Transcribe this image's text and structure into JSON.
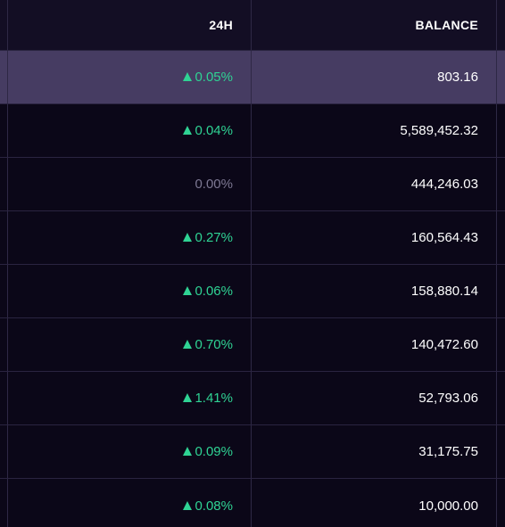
{
  "header": {
    "change_label": "24H",
    "balance_label": "BALANCE"
  },
  "rows": [
    {
      "change": "0.05%",
      "direction": "up",
      "balance": "803.16",
      "highlighted": true
    },
    {
      "change": "0.04%",
      "direction": "up",
      "balance": "5,589,452.32",
      "highlighted": false
    },
    {
      "change": "0.00%",
      "direction": "none",
      "balance": "444,246.03",
      "highlighted": false
    },
    {
      "change": "0.27%",
      "direction": "up",
      "balance": "160,564.43",
      "highlighted": false
    },
    {
      "change": "0.06%",
      "direction": "up",
      "balance": "158,880.14",
      "highlighted": false
    },
    {
      "change": "0.70%",
      "direction": "up",
      "balance": "140,472.60",
      "highlighted": false
    },
    {
      "change": "1.41%",
      "direction": "up",
      "balance": "52,793.06",
      "highlighted": false
    },
    {
      "change": "0.09%",
      "direction": "up",
      "balance": "31,175.75",
      "highlighted": false
    },
    {
      "change": "0.08%",
      "direction": "up",
      "balance": "10,000.00",
      "highlighted": false
    }
  ],
  "colors": {
    "positive": "#2fd394",
    "neutral": "#7d7893",
    "highlight_row": "#463c62",
    "background": "#0b0718"
  }
}
